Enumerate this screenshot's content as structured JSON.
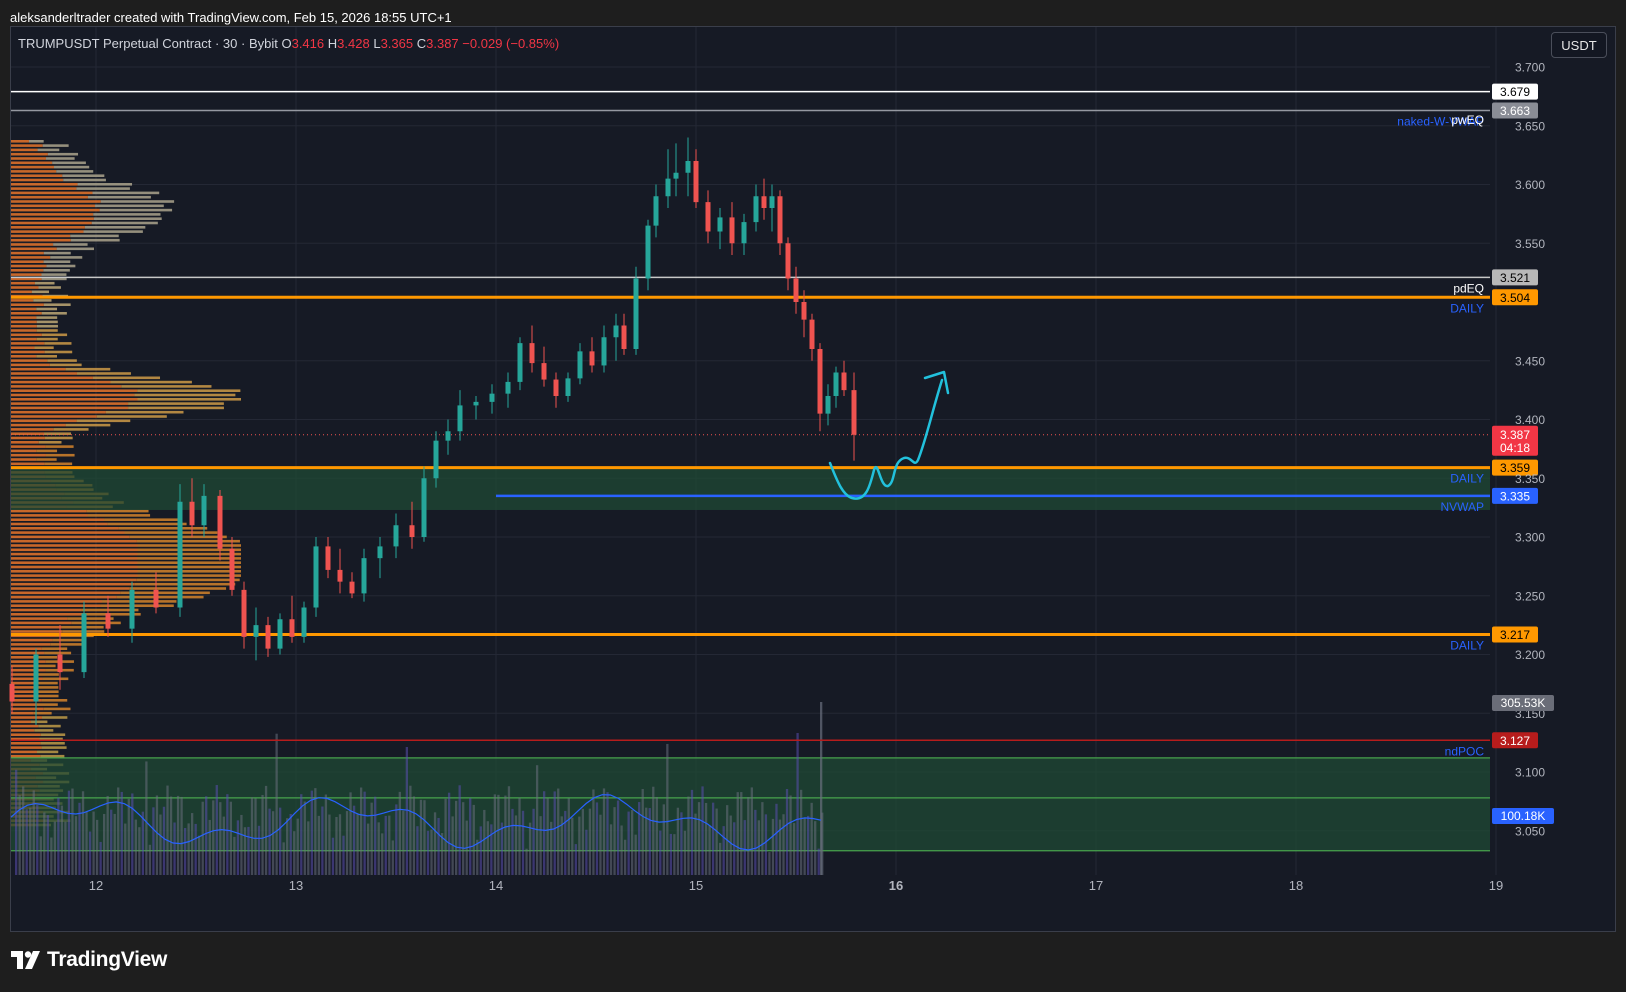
{
  "attribution": "aleksanderltrader created with TradingView.com, Feb 15, 2026 18:55 UTC+1",
  "legend": {
    "symbol": "TRUMPUSDT Perpetual Contract · 30 · Bybit",
    "o_label": "O",
    "o_value": "3.416",
    "h_label": "H",
    "h_value": "3.428",
    "l_label": "L",
    "l_value": "3.365",
    "c_label": "C",
    "c_value": "3.387",
    "change": "−0.029 (−0.85%)"
  },
  "currency": "USDT",
  "brand": "TradingView",
  "colors": {
    "background": "#161a25",
    "grid": "#242835",
    "up": "#26a69a",
    "down": "#ef5350",
    "daily_level": "#ff9800",
    "nvwap": "#2962ff",
    "ndpoc": "#b71c1c",
    "drawing": "#22c1dc",
    "zone": "#1f4a34"
  },
  "chart_data": {
    "type": "candlestick",
    "y_axis": {
      "min": 3.0,
      "max": 3.72,
      "ticks": [
        "3.050",
        "3.100",
        "3.150",
        "3.200",
        "3.250",
        "3.300",
        "3.350",
        "3.400",
        "3.450",
        "3.550",
        "3.600",
        "3.650",
        "3.700"
      ]
    },
    "x_axis": {
      "ticks": [
        {
          "label": "12",
          "day": 12,
          "bold": false
        },
        {
          "label": "13",
          "day": 13,
          "bold": false
        },
        {
          "label": "14",
          "day": 14,
          "bold": false
        },
        {
          "label": "15",
          "day": 15,
          "bold": false
        },
        {
          "label": "16",
          "day": 16,
          "bold": true
        },
        {
          "label": "17",
          "day": 17,
          "bold": false
        },
        {
          "label": "18",
          "day": 18,
          "bold": false
        },
        {
          "label": "19",
          "day": 19,
          "bold": false
        }
      ]
    },
    "last_price": {
      "value": 3.387,
      "label": "3.387",
      "countdown": "04:18"
    },
    "levels": [
      {
        "value": 3.679,
        "label": "3.679",
        "name": "",
        "style": "white"
      },
      {
        "value": 3.663,
        "label": "3.663",
        "name": "naked-W-VWAP",
        "style": "gray",
        "name_color": "#2962ff"
      },
      {
        "value": 3.655,
        "label": "",
        "name": "pwEQ",
        "style": "none",
        "name_color": "#ffffff"
      },
      {
        "value": 3.521,
        "label": "3.521",
        "name": "pdEQ",
        "style": "lightgray",
        "name_color": "#ffffff"
      },
      {
        "value": 3.504,
        "label": "3.504",
        "name": "DAILY",
        "style": "orange",
        "name_color": "#2962ff"
      },
      {
        "value": 3.359,
        "label": "3.359",
        "name": "DAILY",
        "style": "orange",
        "name_color": "#2962ff"
      },
      {
        "value": 3.335,
        "label": "3.335",
        "name": "NVWAP",
        "style": "blue",
        "name_color": "#2962ff",
        "start_day": 14.0
      },
      {
        "value": 3.217,
        "label": "3.217",
        "name": "DAILY",
        "style": "orange",
        "name_color": "#2962ff"
      },
      {
        "value": 3.127,
        "label": "3.127",
        "name": "ndPOC",
        "style": "red",
        "name_color": "#2962ff"
      }
    ],
    "zones": [
      {
        "from": 3.323,
        "to": 3.359,
        "start_day": 11.0
      },
      {
        "from": 3.033,
        "to": 3.112,
        "start_day": 11.0
      }
    ],
    "zone_midline": 3.078,
    "volume": {
      "max_label": "305.53K",
      "ma_label": "100.18K"
    },
    "candles": [
      {
        "d": 11.58,
        "o": 3.175,
        "h": 3.19,
        "l": 3.15,
        "c": 3.16
      },
      {
        "d": 11.7,
        "o": 3.16,
        "h": 3.205,
        "l": 3.14,
        "c": 3.2
      },
      {
        "d": 11.82,
        "o": 3.2,
        "h": 3.225,
        "l": 3.17,
        "c": 3.185
      },
      {
        "d": 11.94,
        "o": 3.185,
        "h": 3.245,
        "l": 3.18,
        "c": 3.235
      },
      {
        "d": 12.06,
        "o": 3.235,
        "h": 3.25,
        "l": 3.215,
        "c": 3.222
      },
      {
        "d": 12.18,
        "o": 3.222,
        "h": 3.262,
        "l": 3.21,
        "c": 3.255
      },
      {
        "d": 12.3,
        "o": 3.255,
        "h": 3.27,
        "l": 3.235,
        "c": 3.24
      },
      {
        "d": 12.42,
        "o": 3.24,
        "h": 3.345,
        "l": 3.232,
        "c": 3.33
      },
      {
        "d": 12.48,
        "o": 3.33,
        "h": 3.35,
        "l": 3.3,
        "c": 3.31
      },
      {
        "d": 12.54,
        "o": 3.31,
        "h": 3.345,
        "l": 3.3,
        "c": 3.335
      },
      {
        "d": 12.62,
        "o": 3.335,
        "h": 3.34,
        "l": 3.28,
        "c": 3.29
      },
      {
        "d": 12.68,
        "o": 3.29,
        "h": 3.3,
        "l": 3.25,
        "c": 3.255
      },
      {
        "d": 12.74,
        "o": 3.255,
        "h": 3.262,
        "l": 3.205,
        "c": 3.215
      },
      {
        "d": 12.8,
        "o": 3.215,
        "h": 3.24,
        "l": 3.195,
        "c": 3.225
      },
      {
        "d": 12.86,
        "o": 3.225,
        "h": 3.232,
        "l": 3.198,
        "c": 3.205
      },
      {
        "d": 12.92,
        "o": 3.205,
        "h": 3.235,
        "l": 3.2,
        "c": 3.23
      },
      {
        "d": 12.98,
        "o": 3.23,
        "h": 3.25,
        "l": 3.21,
        "c": 3.215
      },
      {
        "d": 13.04,
        "o": 3.215,
        "h": 3.245,
        "l": 3.21,
        "c": 3.24
      },
      {
        "d": 13.1,
        "o": 3.24,
        "h": 3.3,
        "l": 3.232,
        "c": 3.292
      },
      {
        "d": 13.16,
        "o": 3.292,
        "h": 3.3,
        "l": 3.265,
        "c": 3.272
      },
      {
        "d": 13.22,
        "o": 3.272,
        "h": 3.29,
        "l": 3.252,
        "c": 3.262
      },
      {
        "d": 13.28,
        "o": 3.262,
        "h": 3.27,
        "l": 3.248,
        "c": 3.252
      },
      {
        "d": 13.34,
        "o": 3.252,
        "h": 3.29,
        "l": 3.245,
        "c": 3.282
      },
      {
        "d": 13.42,
        "o": 3.282,
        "h": 3.3,
        "l": 3.265,
        "c": 3.292
      },
      {
        "d": 13.5,
        "o": 3.292,
        "h": 3.32,
        "l": 3.282,
        "c": 3.31
      },
      {
        "d": 13.58,
        "o": 3.31,
        "h": 3.33,
        "l": 3.29,
        "c": 3.3
      },
      {
        "d": 13.64,
        "o": 3.3,
        "h": 3.36,
        "l": 3.296,
        "c": 3.35
      },
      {
        "d": 13.7,
        "o": 3.35,
        "h": 3.39,
        "l": 3.342,
        "c": 3.382
      },
      {
        "d": 13.76,
        "o": 3.382,
        "h": 3.4,
        "l": 3.37,
        "c": 3.39
      },
      {
        "d": 13.82,
        "o": 3.39,
        "h": 3.425,
        "l": 3.382,
        "c": 3.412
      },
      {
        "d": 13.9,
        "o": 3.412,
        "h": 3.42,
        "l": 3.4,
        "c": 3.415
      },
      {
        "d": 13.98,
        "o": 3.415,
        "h": 3.43,
        "l": 3.405,
        "c": 3.422
      },
      {
        "d": 14.06,
        "o": 3.422,
        "h": 3.44,
        "l": 3.41,
        "c": 3.432
      },
      {
        "d": 14.12,
        "o": 3.432,
        "h": 3.47,
        "l": 3.425,
        "c": 3.465
      },
      {
        "d": 14.18,
        "o": 3.465,
        "h": 3.48,
        "l": 3.44,
        "c": 3.448
      },
      {
        "d": 14.24,
        "o": 3.448,
        "h": 3.462,
        "l": 3.428,
        "c": 3.434
      },
      {
        "d": 14.3,
        "o": 3.434,
        "h": 3.44,
        "l": 3.41,
        "c": 3.42
      },
      {
        "d": 14.36,
        "o": 3.42,
        "h": 3.44,
        "l": 3.415,
        "c": 3.435
      },
      {
        "d": 14.42,
        "o": 3.435,
        "h": 3.465,
        "l": 3.43,
        "c": 3.458
      },
      {
        "d": 14.48,
        "o": 3.458,
        "h": 3.47,
        "l": 3.44,
        "c": 3.446
      },
      {
        "d": 14.54,
        "o": 3.446,
        "h": 3.48,
        "l": 3.44,
        "c": 3.47
      },
      {
        "d": 14.6,
        "o": 3.47,
        "h": 3.49,
        "l": 3.45,
        "c": 3.48
      },
      {
        "d": 14.64,
        "o": 3.48,
        "h": 3.49,
        "l": 3.455,
        "c": 3.46
      },
      {
        "d": 14.7,
        "o": 3.46,
        "h": 3.53,
        "l": 3.455,
        "c": 3.52
      },
      {
        "d": 14.76,
        "o": 3.52,
        "h": 3.57,
        "l": 3.51,
        "c": 3.565
      },
      {
        "d": 14.8,
        "o": 3.565,
        "h": 3.6,
        "l": 3.555,
        "c": 3.59
      },
      {
        "d": 14.86,
        "o": 3.59,
        "h": 3.63,
        "l": 3.58,
        "c": 3.605
      },
      {
        "d": 14.9,
        "o": 3.605,
        "h": 3.635,
        "l": 3.59,
        "c": 3.61
      },
      {
        "d": 14.96,
        "o": 3.61,
        "h": 3.64,
        "l": 3.59,
        "c": 3.62
      },
      {
        "d": 15.0,
        "o": 3.62,
        "h": 3.63,
        "l": 3.58,
        "c": 3.585
      },
      {
        "d": 15.06,
        "o": 3.585,
        "h": 3.595,
        "l": 3.55,
        "c": 3.56
      },
      {
        "d": 15.12,
        "o": 3.56,
        "h": 3.58,
        "l": 3.545,
        "c": 3.572
      },
      {
        "d": 15.18,
        "o": 3.572,
        "h": 3.585,
        "l": 3.54,
        "c": 3.55
      },
      {
        "d": 15.24,
        "o": 3.55,
        "h": 3.575,
        "l": 3.54,
        "c": 3.568
      },
      {
        "d": 15.3,
        "o": 3.568,
        "h": 3.6,
        "l": 3.56,
        "c": 3.59
      },
      {
        "d": 15.34,
        "o": 3.59,
        "h": 3.605,
        "l": 3.57,
        "c": 3.58
      },
      {
        "d": 15.38,
        "o": 3.58,
        "h": 3.6,
        "l": 3.56,
        "c": 3.59
      },
      {
        "d": 15.42,
        "o": 3.59,
        "h": 3.595,
        "l": 3.54,
        "c": 3.55
      },
      {
        "d": 15.46,
        "o": 3.55,
        "h": 3.555,
        "l": 3.51,
        "c": 3.52
      },
      {
        "d": 15.5,
        "o": 3.52,
        "h": 3.53,
        "l": 3.49,
        "c": 3.5
      },
      {
        "d": 15.54,
        "o": 3.5,
        "h": 3.51,
        "l": 3.47,
        "c": 3.485
      },
      {
        "d": 15.58,
        "o": 3.485,
        "h": 3.49,
        "l": 3.45,
        "c": 3.46
      },
      {
        "d": 15.62,
        "o": 3.46,
        "h": 3.465,
        "l": 3.39,
        "c": 3.405
      },
      {
        "d": 15.66,
        "o": 3.405,
        "h": 3.43,
        "l": 3.395,
        "c": 3.42
      },
      {
        "d": 15.7,
        "o": 3.42,
        "h": 3.445,
        "l": 3.41,
        "c": 3.44
      },
      {
        "d": 15.74,
        "o": 3.44,
        "h": 3.45,
        "l": 3.42,
        "c": 3.425
      },
      {
        "d": 15.79,
        "o": 3.425,
        "h": 3.44,
        "l": 3.365,
        "c": 3.387
      }
    ]
  }
}
